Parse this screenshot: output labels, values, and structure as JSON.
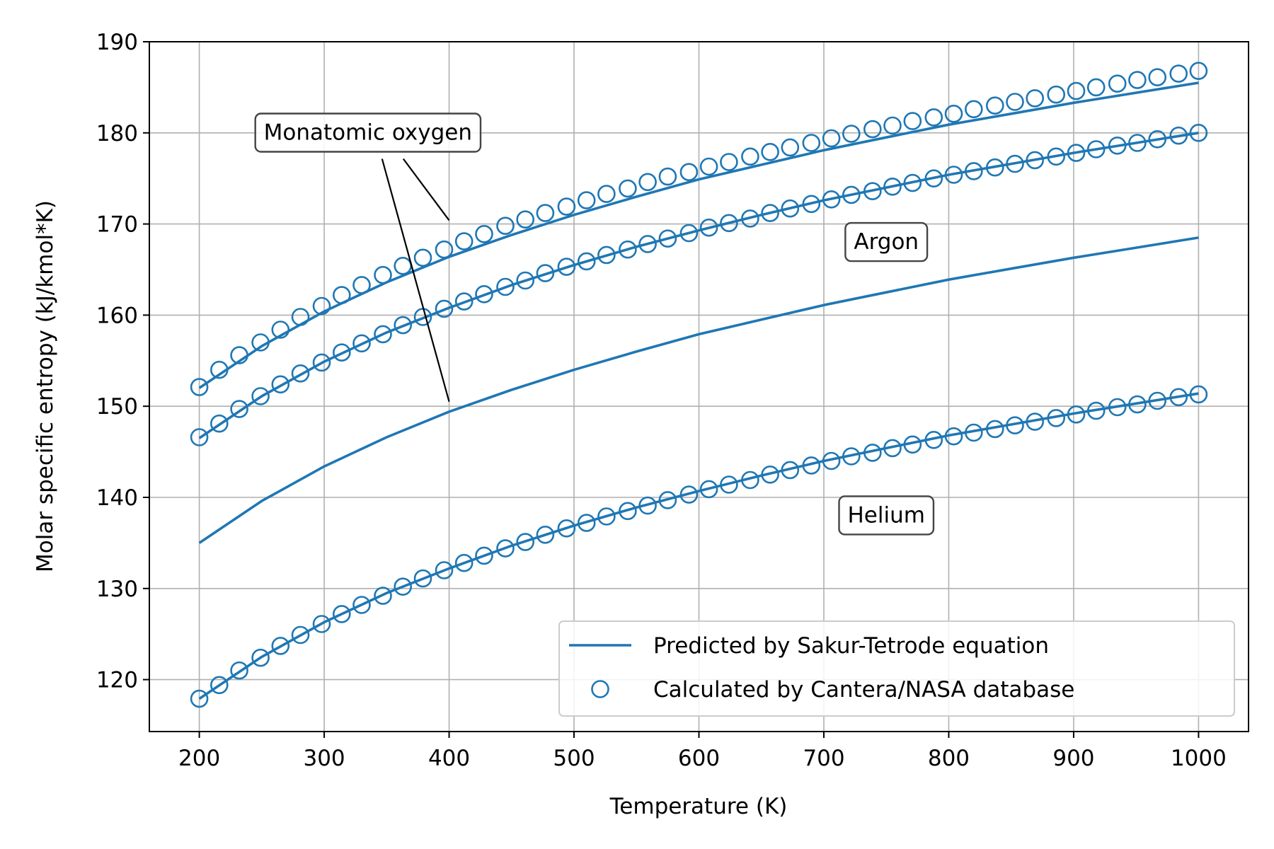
{
  "chart_data": {
    "type": "line",
    "title": "",
    "xlabel": "Temperature (K)",
    "ylabel": "Molar specific entropy (kJ/kmol*K)",
    "xlim": [
      160,
      1040
    ],
    "ylim": [
      114.3,
      190
    ],
    "xticks": [
      200,
      300,
      400,
      500,
      600,
      700,
      800,
      900,
      1000
    ],
    "yticks": [
      120,
      130,
      140,
      150,
      160,
      170,
      180,
      190
    ],
    "grid": true,
    "legend_position": "lower right",
    "colors": {
      "series": "#1f77b4",
      "axis": "#000000",
      "grid": "#b0b0b0"
    },
    "legend": [
      {
        "label": "Predicted by Sakur-Tetrode equation",
        "marker": "line"
      },
      {
        "label": "Calculated by Cantera/NASA database",
        "marker": "open-circle"
      }
    ],
    "series": [
      {
        "style": "line",
        "gas": "Monatomic oxygen",
        "x": [
          200,
          250,
          300,
          350,
          400,
          450,
          500,
          550,
          600,
          650,
          700,
          750,
          800,
          850,
          900,
          950,
          1000
        ],
        "y": [
          152.0,
          156.6,
          160.4,
          163.6,
          166.4,
          168.8,
          171.0,
          173.0,
          174.9,
          176.5,
          178.1,
          179.5,
          180.9,
          182.1,
          183.3,
          184.4,
          185.5
        ]
      },
      {
        "style": "line",
        "gas": "Argon",
        "x": [
          200,
          250,
          300,
          350,
          400,
          450,
          500,
          550,
          600,
          650,
          700,
          750,
          800,
          850,
          900,
          950,
          1000
        ],
        "y": [
          146.5,
          151.1,
          154.9,
          158.1,
          160.8,
          163.3,
          165.5,
          167.5,
          169.3,
          171.0,
          172.6,
          174.0,
          175.4,
          176.6,
          177.8,
          178.9,
          180.0
        ]
      },
      {
        "style": "line",
        "gas": "",
        "x": [
          200,
          250,
          300,
          350,
          400,
          450,
          500,
          550,
          600,
          650,
          700,
          750,
          800,
          850,
          900,
          950,
          1000
        ],
        "y": [
          135.0,
          139.6,
          143.4,
          146.6,
          149.4,
          151.8,
          154.0,
          156.0,
          157.9,
          159.5,
          161.1,
          162.5,
          163.9,
          165.1,
          166.3,
          167.4,
          168.5
        ]
      },
      {
        "style": "line",
        "gas": "Helium",
        "x": [
          200,
          250,
          300,
          350,
          400,
          450,
          500,
          550,
          600,
          650,
          700,
          750,
          800,
          850,
          900,
          950,
          1000
        ],
        "y": [
          117.9,
          122.5,
          126.3,
          129.5,
          132.2,
          134.7,
          136.9,
          138.9,
          140.7,
          142.4,
          144.0,
          145.4,
          146.8,
          148.0,
          149.2,
          150.3,
          151.4
        ]
      },
      {
        "style": "markers",
        "gas": "Monatomic oxygen",
        "x": [
          200,
          216,
          232,
          249,
          265,
          281,
          298,
          314,
          330,
          347,
          363,
          379,
          396,
          412,
          428,
          445,
          461,
          477,
          494,
          510,
          526,
          543,
          559,
          575,
          592,
          608,
          624,
          641,
          657,
          673,
          690,
          706,
          722,
          739,
          755,
          771,
          788,
          804,
          820,
          837,
          853,
          869,
          886,
          902,
          918,
          935,
          951,
          967,
          984,
          1000
        ],
        "y": [
          152.1,
          154.0,
          155.6,
          157.0,
          158.4,
          159.8,
          161.0,
          162.2,
          163.3,
          164.4,
          165.4,
          166.3,
          167.2,
          168.1,
          168.9,
          169.8,
          170.5,
          171.2,
          171.9,
          172.6,
          173.3,
          173.9,
          174.6,
          175.2,
          175.7,
          176.3,
          176.8,
          177.4,
          177.9,
          178.4,
          178.9,
          179.4,
          179.9,
          180.4,
          180.8,
          181.3,
          181.7,
          182.1,
          182.6,
          183.0,
          183.4,
          183.8,
          184.2,
          184.6,
          185.0,
          185.4,
          185.8,
          186.1,
          186.5,
          186.8
        ]
      },
      {
        "style": "markers",
        "gas": "Argon",
        "x": [
          200,
          216,
          232,
          249,
          265,
          281,
          298,
          314,
          330,
          347,
          363,
          379,
          396,
          412,
          428,
          445,
          461,
          477,
          494,
          510,
          526,
          543,
          559,
          575,
          592,
          608,
          624,
          641,
          657,
          673,
          690,
          706,
          722,
          739,
          755,
          771,
          788,
          804,
          820,
          837,
          853,
          869,
          886,
          902,
          918,
          935,
          951,
          967,
          984,
          1000
        ],
        "y": [
          146.6,
          148.1,
          149.7,
          151.1,
          152.4,
          153.6,
          154.8,
          155.9,
          156.9,
          157.9,
          158.9,
          159.8,
          160.7,
          161.5,
          162.3,
          163.1,
          163.8,
          164.6,
          165.3,
          165.9,
          166.6,
          167.2,
          167.8,
          168.4,
          169.0,
          169.6,
          170.1,
          170.6,
          171.2,
          171.7,
          172.2,
          172.7,
          173.2,
          173.6,
          174.1,
          174.5,
          175.0,
          175.4,
          175.8,
          176.2,
          176.6,
          177.0,
          177.4,
          177.8,
          178.2,
          178.6,
          178.9,
          179.3,
          179.7,
          180.0
        ]
      },
      {
        "style": "markers",
        "gas": "Helium",
        "x": [
          200,
          216,
          232,
          249,
          265,
          281,
          298,
          314,
          330,
          347,
          363,
          379,
          396,
          412,
          428,
          445,
          461,
          477,
          494,
          510,
          526,
          543,
          559,
          575,
          592,
          608,
          624,
          641,
          657,
          673,
          690,
          706,
          722,
          739,
          755,
          771,
          788,
          804,
          820,
          837,
          853,
          869,
          886,
          902,
          918,
          935,
          951,
          967,
          984,
          1000
        ],
        "y": [
          117.9,
          119.4,
          121.0,
          122.4,
          123.7,
          124.9,
          126.1,
          127.2,
          128.2,
          129.2,
          130.2,
          131.1,
          132.0,
          132.8,
          133.6,
          134.4,
          135.1,
          135.9,
          136.6,
          137.2,
          137.9,
          138.5,
          139.1,
          139.7,
          140.3,
          140.9,
          141.4,
          141.9,
          142.5,
          143.0,
          143.5,
          144.0,
          144.5,
          144.9,
          145.4,
          145.8,
          146.3,
          146.7,
          147.1,
          147.5,
          147.9,
          148.3,
          148.7,
          149.1,
          149.5,
          149.9,
          150.2,
          150.6,
          151.0,
          151.3
        ]
      }
    ],
    "annotations": [
      {
        "text": "Monatomic oxygen",
        "at": [
          335,
          180.1
        ],
        "arrows_to": [
          [
            400,
            170.4
          ],
          [
            400,
            150.5
          ]
        ]
      },
      {
        "text": "Argon",
        "at": [
          750,
          168.1
        ]
      },
      {
        "text": "Helium",
        "at": [
          750,
          138.1
        ]
      }
    ]
  }
}
